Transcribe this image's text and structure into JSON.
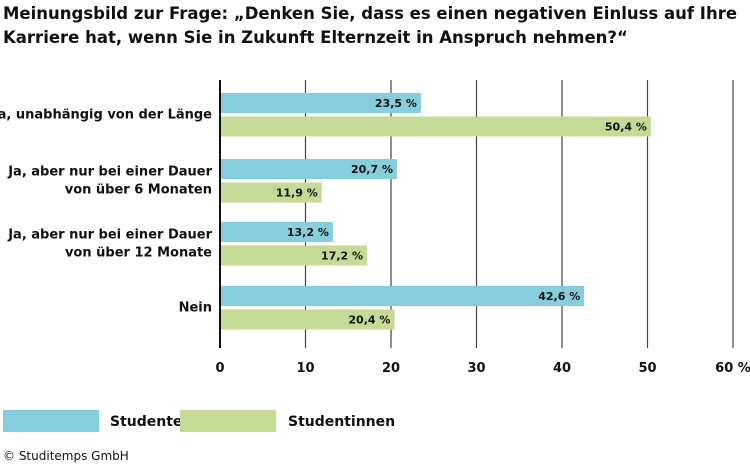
{
  "chart_data": {
    "type": "bar",
    "orientation": "horizontal",
    "title_lines": [
      "Meinungsbild zur Frage: „Denken Sie, dass es einen negativen Einluss auf Ihre",
      "Karriere hat, wenn Sie in Zukunft Elternzeit in Anspruch nehmen?“"
    ],
    "categories": [
      [
        "Ja, unabhängig von der Länge"
      ],
      [
        "Ja, aber nur bei einer Dauer",
        "von über 6 Monaten"
      ],
      [
        "Ja, aber nur bei einer Dauer",
        "von über 12 Monate"
      ],
      [
        "Nein"
      ]
    ],
    "series": [
      {
        "name": "Studenten",
        "color": "#86cedb",
        "values": [
          23.5,
          20.7,
          13.2,
          42.6
        ],
        "labels": [
          "23,5 %",
          "20,7 %",
          "13,2 %",
          "42,6 %"
        ]
      },
      {
        "name": "Studentinnen",
        "color": "#c5da95",
        "values": [
          50.4,
          11.9,
          17.2,
          20.4
        ],
        "labels": [
          "50,4 %",
          "11,9 %",
          "17,2 %",
          "20,4 %"
        ]
      }
    ],
    "xlim": [
      0,
      60
    ],
    "ticks": [
      0,
      10,
      20,
      30,
      40,
      50,
      60
    ],
    "tick_labels": [
      "0",
      "10",
      "20",
      "30",
      "40",
      "50",
      "60 %"
    ],
    "grid": true,
    "legend_position": "bottom-left"
  },
  "source": "© Studitemps GmbH"
}
